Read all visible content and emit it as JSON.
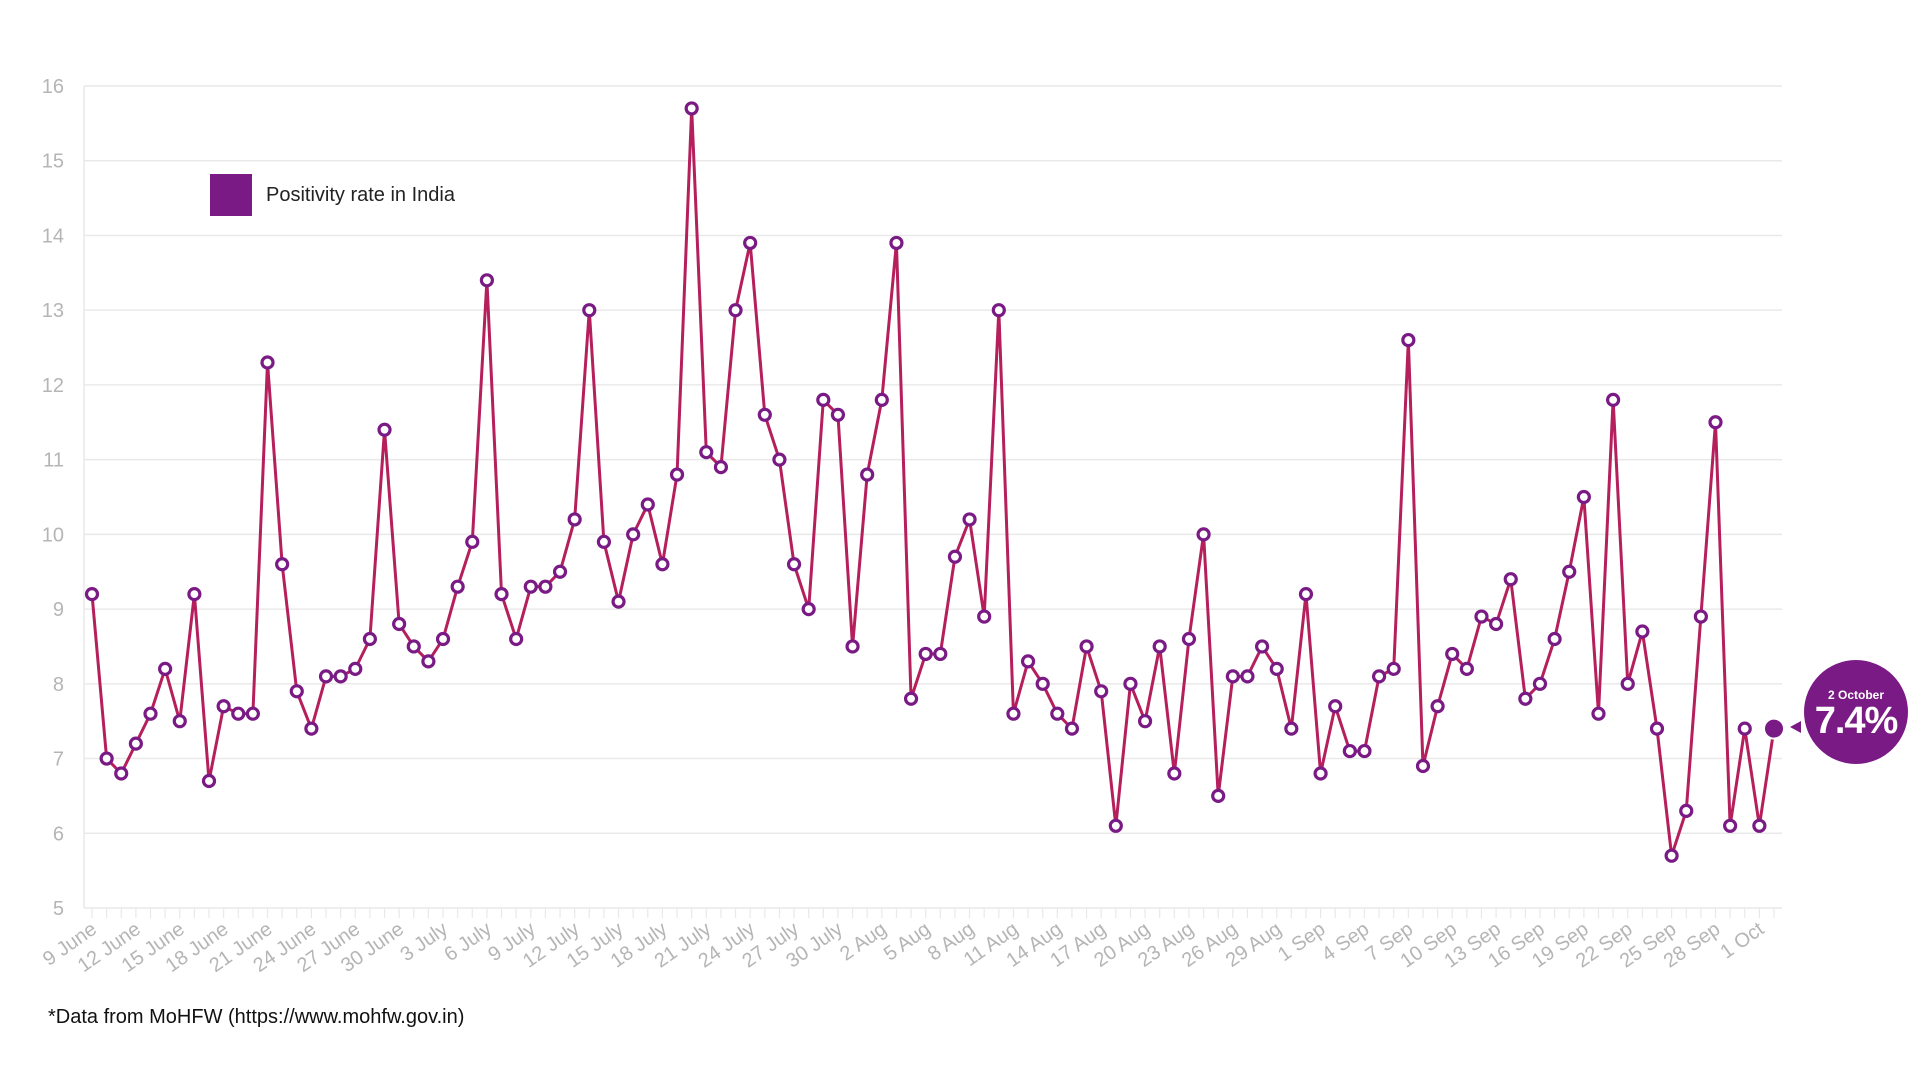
{
  "chart_data": {
    "type": "line",
    "xlabel": "",
    "ylabel": "",
    "ylim": [
      5,
      16
    ],
    "yticks": [
      5,
      6,
      7,
      8,
      9,
      10,
      11,
      12,
      13,
      14,
      15,
      16
    ],
    "x_start": "9 June",
    "x_end": "2 October",
    "tick_labels": [
      "9 June",
      "12 June",
      "15 June",
      "18 June",
      "21 June",
      "24 June",
      "27 June",
      "30 June",
      "3 July",
      "6 July",
      "9 July",
      "12 July",
      "15 July",
      "18 July",
      "21 July",
      "24 July",
      "27 July",
      "30 July",
      "2 Aug",
      "5 Aug",
      "8 Aug",
      "11 Aug",
      "14 Aug",
      "17 Aug",
      "20 Aug",
      "23 Aug",
      "26 Aug",
      "29 Aug",
      "1 Sep",
      "4 Sep",
      "7 Sep",
      "10 Sep",
      "13 Sep",
      "16 Sep",
      "19 Sep",
      "22 Sep",
      "25 Sep",
      "28 Sep",
      "1 Oct"
    ],
    "grid": true,
    "legend_position": "top-left",
    "series": [
      {
        "name": "Positivity rate in India",
        "color": "#7a1a84",
        "line_color": "#b51f5c",
        "values": [
          9.2,
          7.0,
          6.8,
          7.2,
          7.6,
          8.2,
          7.5,
          9.2,
          6.7,
          7.7,
          7.6,
          7.6,
          12.3,
          9.6,
          7.9,
          7.4,
          8.1,
          8.1,
          8.2,
          8.6,
          11.4,
          8.8,
          8.5,
          8.3,
          8.6,
          9.3,
          9.9,
          13.4,
          9.2,
          8.6,
          9.3,
          9.3,
          9.5,
          10.2,
          13.0,
          9.9,
          9.1,
          10.0,
          10.4,
          9.6,
          10.8,
          15.7,
          11.1,
          10.9,
          13.0,
          13.9,
          11.6,
          11.0,
          9.6,
          9.0,
          11.8,
          11.6,
          8.5,
          10.8,
          11.8,
          13.9,
          7.8,
          8.4,
          8.4,
          9.7,
          10.2,
          8.9,
          13.0,
          7.6,
          8.3,
          8.0,
          7.6,
          7.4,
          8.5,
          7.9,
          6.1,
          8.0,
          7.5,
          8.5,
          6.8,
          8.6,
          10.0,
          6.5,
          8.1,
          8.1,
          8.5,
          8.2,
          7.4,
          9.2,
          6.8,
          7.7,
          7.1,
          7.1,
          8.1,
          8.2,
          12.6,
          6.9,
          7.7,
          8.4,
          8.2,
          8.9,
          8.8,
          9.4,
          7.8,
          8.0,
          8.6,
          9.5,
          10.5,
          7.6,
          11.8,
          8.0,
          8.7,
          7.4,
          5.7,
          6.3,
          8.9,
          11.5,
          6.1,
          7.4,
          6.1,
          7.4
        ]
      }
    ],
    "annotation": {
      "date_label": "2 October",
      "value_label": "7.4%",
      "color": "#7a1a84"
    }
  },
  "legend": {
    "label": "Positivity rate in India",
    "color": "#7a1a84"
  },
  "footnote": "*Data from MoHFW (https://www.mohfw.gov.in)",
  "colors": {
    "grid": "#e9e9e9",
    "axis_text": "#b5b5b5",
    "marker_fill": "#ffffff"
  }
}
